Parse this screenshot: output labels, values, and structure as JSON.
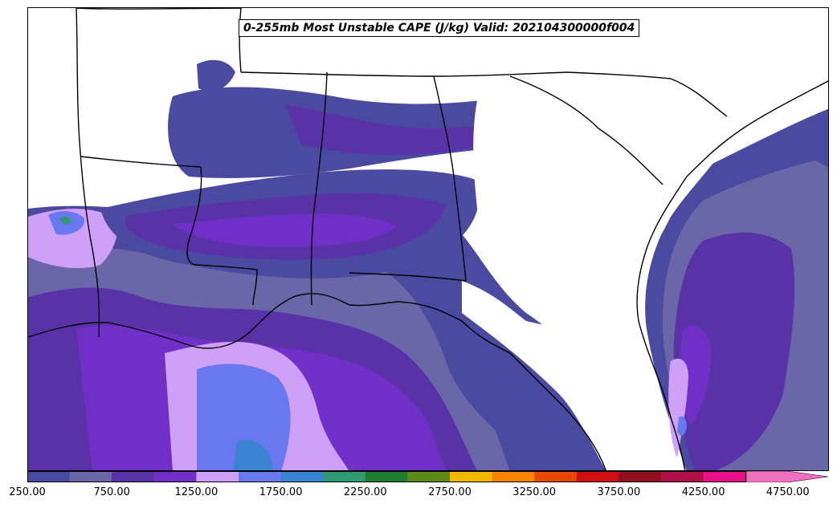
{
  "title": "0-255mb Most Unstable CAPE (J/kg) Valid: 202104300000f004",
  "colorbar": {
    "colors": [
      "#4a4aa0",
      "#6a67a8",
      "#5a32a8",
      "#7030c8",
      "#cfa0f8",
      "#6a78f0",
      "#3a82d2",
      "#2e9a72",
      "#1e7a2e",
      "#5e8a1a",
      "#f0b800",
      "#f88400",
      "#e84800",
      "#d01010",
      "#901020",
      "#b0104a",
      "#e81088",
      "#f070c0"
    ],
    "ticks": [
      "250.00",
      "750.00",
      "1250.00",
      "1750.00",
      "2250.00",
      "2750.00",
      "3250.00",
      "3750.00",
      "4250.00",
      "4750.00"
    ]
  }
}
